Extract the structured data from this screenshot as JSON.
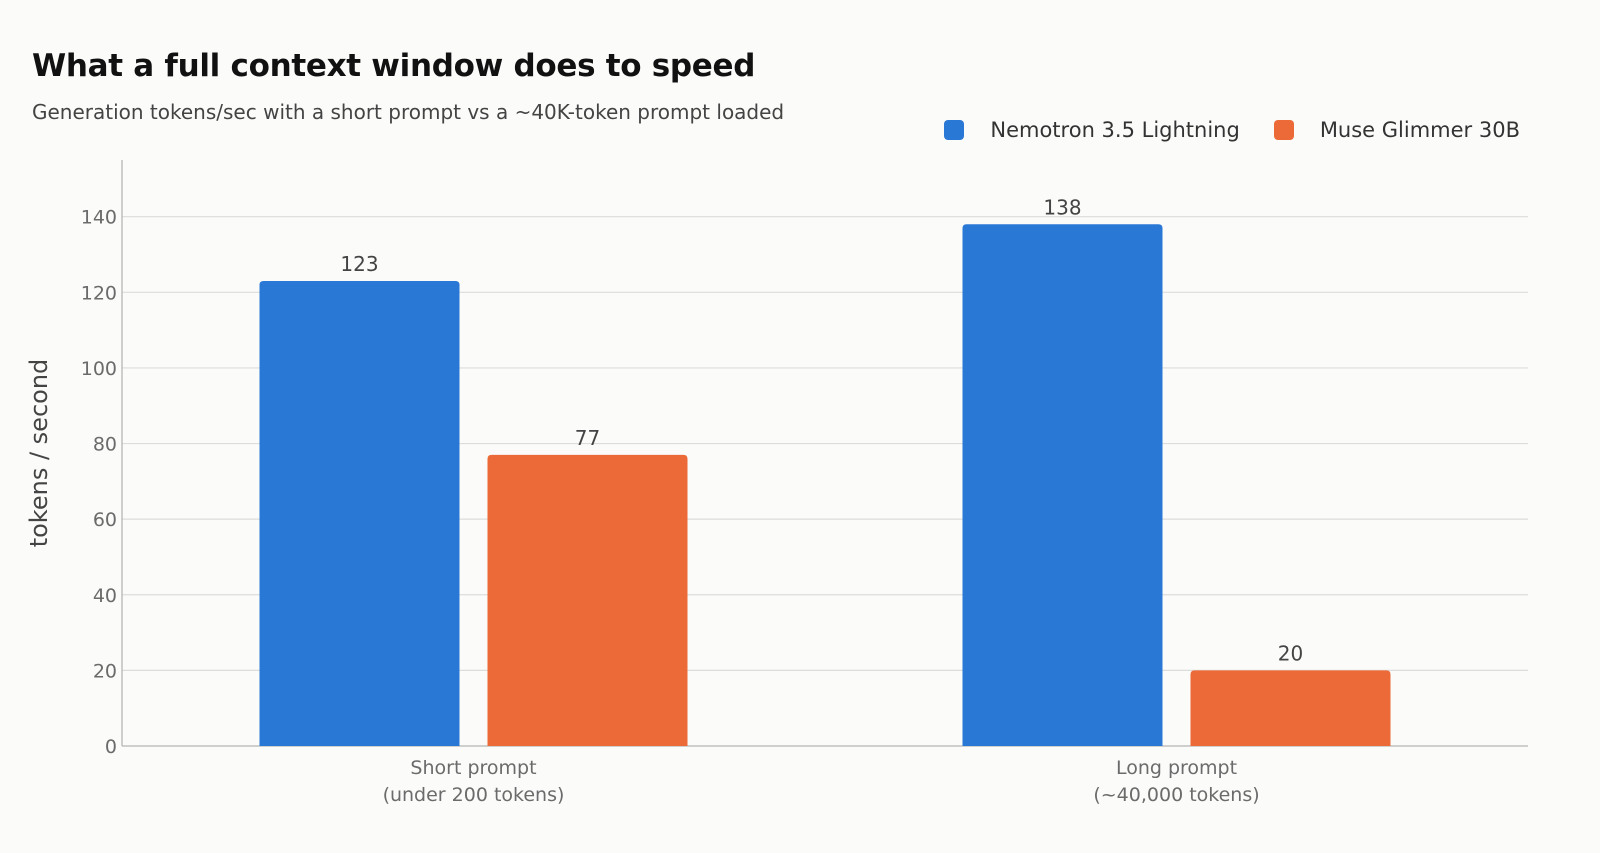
{
  "chart_data": {
    "type": "bar",
    "title": "What a full context window does to speed",
    "subtitle": "Generation tokens/sec with a short prompt vs a ~40K-token prompt loaded",
    "xlabel": "",
    "ylabel": "tokens / second",
    "categories": [
      [
        "Short prompt",
        "(under 200 tokens)"
      ],
      [
        "Long prompt",
        "(~40,000 tokens)"
      ]
    ],
    "series": [
      {
        "name": "Nemotron 3.5 Lightning",
        "color": "#2a78d6",
        "values": [
          123,
          138
        ]
      },
      {
        "name": "Muse Glimmer 30B",
        "color": "#eb6a37",
        "values": [
          77,
          20
        ]
      }
    ],
    "yticks": [
      0,
      20,
      40,
      60,
      80,
      100,
      120,
      140
    ],
    "ylim": [
      0,
      155
    ],
    "grid": true,
    "legend_position": "top-right"
  }
}
